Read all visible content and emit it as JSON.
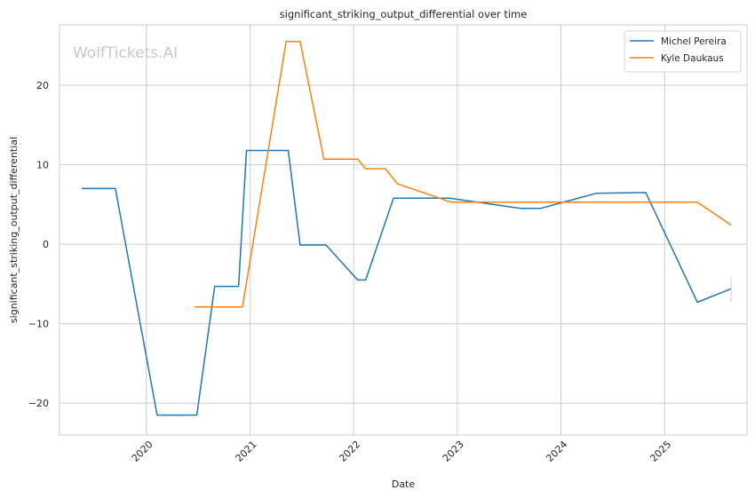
{
  "chart_data": {
    "type": "line",
    "title": "significant_striking_output_differential over time",
    "xlabel": "Date",
    "ylabel": "significant_striking_output_differential",
    "watermark": "WolfTickets.AI",
    "xlim": [
      "2019-03-01",
      "2025-10-18"
    ],
    "ylim": [
      -24,
      27.6
    ],
    "x_ticks": [
      "2020-01-01",
      "2021-01-01",
      "2022-01-01",
      "2023-01-01",
      "2024-01-01",
      "2025-01-01"
    ],
    "x_tick_labels": [
      "2020",
      "2021",
      "2022",
      "2023",
      "2024",
      "2025"
    ],
    "y_ticks": [
      -20,
      -10,
      0,
      10,
      20
    ],
    "y_tick_labels": [
      "−20",
      "−10",
      "0",
      "10",
      "20"
    ],
    "grid": true,
    "legend_position": "top-right",
    "series": [
      {
        "name": "Michel Pereira",
        "color": "#1f77b4",
        "points": [
          [
            "2019-05-18",
            7.0
          ],
          [
            "2019-09-14",
            7.0
          ],
          [
            "2020-02-08",
            -21.5
          ],
          [
            "2020-06-27",
            -21.5
          ],
          [
            "2020-08-29",
            -5.3
          ],
          [
            "2020-11-21",
            -5.3
          ],
          [
            "2020-12-19",
            11.8
          ],
          [
            "2021-05-15",
            11.8
          ],
          [
            "2021-06-26",
            -0.1
          ],
          [
            "2021-09-25",
            -0.1
          ],
          [
            "2022-01-15",
            -4.5
          ],
          [
            "2022-02-12",
            -4.5
          ],
          [
            "2022-05-21",
            5.8
          ],
          [
            "2022-12-03",
            5.8
          ],
          [
            "2023-08-12",
            4.5
          ],
          [
            "2023-10-21",
            4.5
          ],
          [
            "2024-05-04",
            6.4
          ],
          [
            "2024-10-26",
            6.5
          ],
          [
            "2025-04-26",
            -7.3
          ],
          [
            "2025-08-23",
            -5.6
          ]
        ]
      },
      {
        "name": "Kyle Daukaus",
        "color": "#ff7f0e",
        "points": [
          [
            "2020-06-20",
            -7.9
          ],
          [
            "2020-12-05",
            -7.9
          ],
          [
            "2021-05-08",
            25.5
          ],
          [
            "2021-06-26",
            25.5
          ],
          [
            "2021-09-18",
            10.7
          ],
          [
            "2022-01-15",
            10.7
          ],
          [
            "2022-02-12",
            9.5
          ],
          [
            "2022-04-23",
            9.5
          ],
          [
            "2022-06-04",
            7.6
          ],
          [
            "2022-12-10",
            5.3
          ],
          [
            "2025-04-26",
            5.3
          ],
          [
            "2025-08-23",
            2.4
          ]
        ]
      }
    ]
  }
}
